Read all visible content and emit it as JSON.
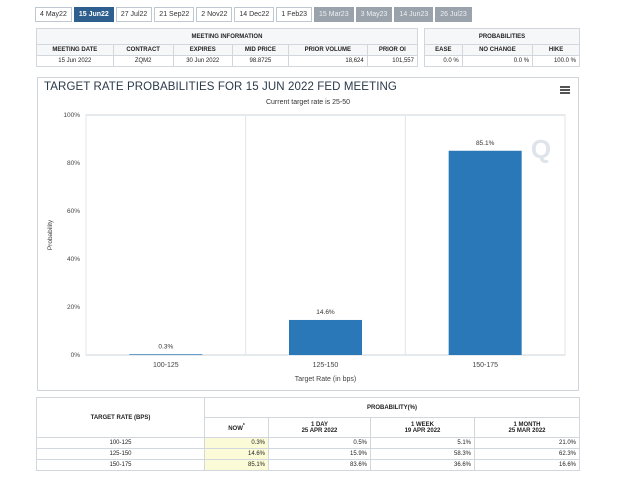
{
  "tabs": [
    {
      "label": "4 May22",
      "state": "normal"
    },
    {
      "label": "15 Jun22",
      "state": "active"
    },
    {
      "label": "27 Jul22",
      "state": "normal"
    },
    {
      "label": "21 Sep22",
      "state": "normal"
    },
    {
      "label": "2 Nov22",
      "state": "normal"
    },
    {
      "label": "14 Dec22",
      "state": "normal"
    },
    {
      "label": "1 Feb23",
      "state": "normal"
    },
    {
      "label": "15 Mar23",
      "state": "gray"
    },
    {
      "label": "3 May23",
      "state": "gray"
    },
    {
      "label": "14 Jun23",
      "state": "gray"
    },
    {
      "label": "26 Jul23",
      "state": "gray"
    }
  ],
  "meeting_info": {
    "header": "MEETING INFORMATION",
    "columns": [
      "MEETING DATE",
      "CONTRACT",
      "EXPIRES",
      "MID PRICE",
      "PRIOR VOLUME",
      "PRIOR OI"
    ],
    "row": [
      "15 Jun 2022",
      "ZQM2",
      "30 Jun 2022",
      "98.8725",
      "18,624",
      "101,557"
    ]
  },
  "probabilities": {
    "header": "PROBABILITIES",
    "columns": [
      "EASE",
      "NO CHANGE",
      "HIKE"
    ],
    "row": [
      "0.0 %",
      "0.0 %",
      "100.0 %"
    ]
  },
  "chart": {
    "title": "TARGET RATE PROBABILITIES FOR 15 JUN 2022 FED MEETING",
    "subtitle": "Current target rate is 25-50",
    "menu_icon": "hamburger-menu-icon",
    "watermark": "Q",
    "bar_color": "#2a78b8"
  },
  "chart_data": {
    "type": "bar",
    "title": "TARGET RATE PROBABILITIES FOR 15 JUN 2022 FED MEETING",
    "subtitle": "Current target rate is 25-50",
    "xlabel": "Target Rate (in bps)",
    "ylabel": "Probability",
    "categories": [
      "100-125",
      "125-150",
      "150-175"
    ],
    "values": [
      0.3,
      14.6,
      85.1
    ],
    "data_labels": [
      "0.3%",
      "14.6%",
      "85.1%"
    ],
    "ylim": [
      0,
      100
    ],
    "yticks": [
      "0%",
      "20%",
      "40%",
      "60%",
      "80%",
      "100%"
    ],
    "grid": "vertical"
  },
  "bottom_table": {
    "target_header": "TARGET RATE (BPS)",
    "prob_header": "PROBABILITY(%)",
    "col_now": "NOW",
    "col_now_mark": "*",
    "col_1day": "1 DAY",
    "col_1day_date": "25 APR 2022",
    "col_1week": "1 WEEK",
    "col_1week_date": "19 APR 2022",
    "col_1month": "1 MONTH",
    "col_1month_date": "25 MAR 2022",
    "rows": [
      {
        "rate": "100-125",
        "now": "0.3%",
        "day": "0.5%",
        "week": "5.1%",
        "month": "21.0%"
      },
      {
        "rate": "125-150",
        "now": "14.6%",
        "day": "15.9%",
        "week": "58.3%",
        "month": "62.3%"
      },
      {
        "rate": "150-175",
        "now": "85.1%",
        "day": "83.6%",
        "week": "36.6%",
        "month": "16.6%"
      }
    ]
  }
}
